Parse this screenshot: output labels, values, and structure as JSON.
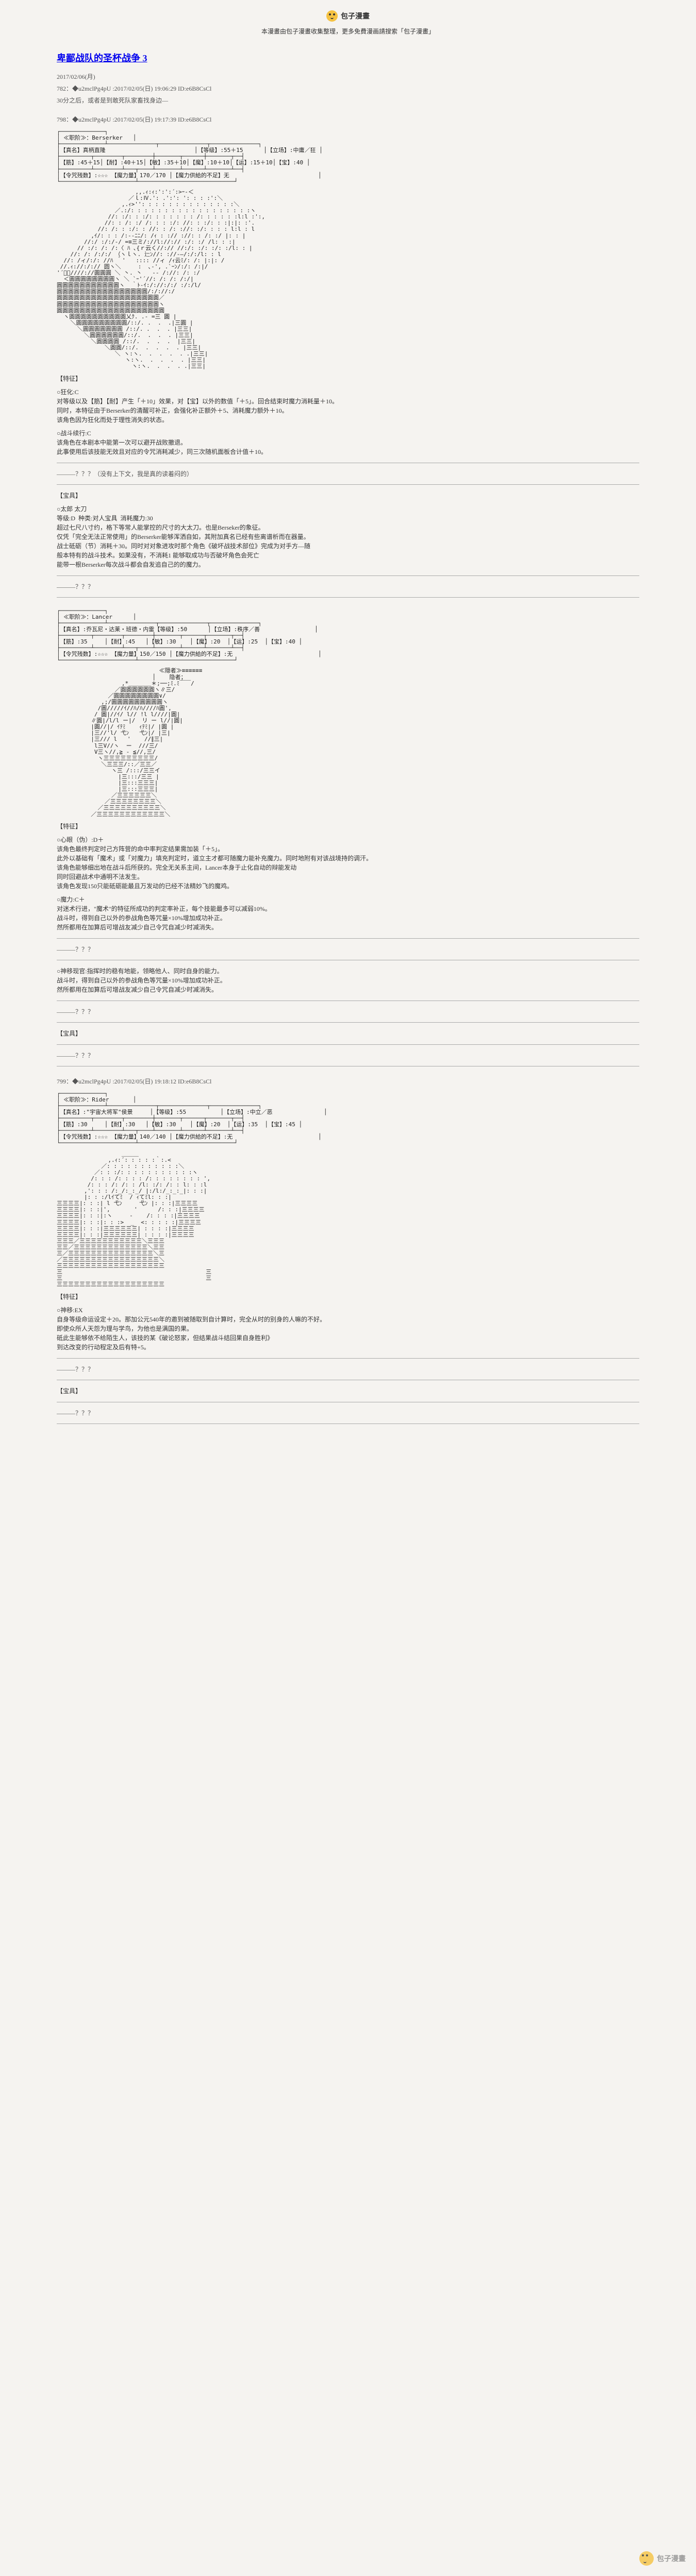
{
  "header": {
    "logo_text": "包子漫畫",
    "subtitle": "本漫畫由包子漫畫收集整理，更多免費漫画請搜索「包子漫畫」"
  },
  "title": "卑鄙战队的圣杯战争 3",
  "date": "2017/02/06(月)",
  "meta1": "782：◆u2mclPg4pU :2017/02/05(日) 19:06:29 ID:e6B8CsCl",
  "meta2": "30分之后，或者是到敢死队家畜找身边—",
  "post798": {
    "header": "798：◆u2mclPg4pU :2017/02/05(日) 19:17:39 ID:e6B8CsCl",
    "stat_box": "┌─────────────┐\n│ ≪职阶≫：Berserker   │\n├─────────────┴──────────────┬──────────────┬──────────────┐\n│【真名】真柄直隆                          │【等级】:55＋15      │【立场】:中庸／狂 │\n├─────────┬────────┬────────┼───────┬──────┼───────┬──┤\n│【筋】:45＋15│【耐】:40＋15│【敏】:35＋10│【魔】:10＋10│【运】:15＋10│【宝】:40 │\n├─────────┴────────┴───┬────┴───────┴──────┴───────┴──┤\n│【令咒残数】:☆☆☆ 【魔力量】170／170 │【魔力供給的不足】无                          │\n└──────────────────────┴────────────────────────────┘",
    "ascii_art": "                       ,,.ｨ:ｨ:':':´:>ｰ-＜\n                     ／ｌ:Ⅳ.': .':': ': : : :':＼\n                   ,.ｨ>'': : : : : : : : : : : : : :＼\n                 ／.:/: : : : : : : : : : : : : : : : : :ヽ\n               //: :/: : :/: : : : : : : /: : : : : :l:l :':,\n              //: : /: :/ /: : : :/: //: : :/: : :|:|: :'.\n            //: /: : :/: : //: : /: ://: :/: : : : l:l : l\n          ,ｲ/: : : /:-‐ﾆﾆ/: /ｨ : :// ://: : /: :/ |: : |\n        //:/ :/:/-/ =≡三ミ/://l://:// :/: :/ /l: : :|\n      // :/: /: /:〈 ﾊ ､{ｒ云く//:// //:/: :/: :/: :/l: : |\n    //: /: /:/:/ （ヽｌヽ. 辷ﾝ//: ://-―/:/:/l: : l\n  //: /ィ/:/: //ﾊ ｀'   :::: //ィ /ｨ云ﾐ/: /: |:|: /\n //.ｨ://:/:// 圆ヽ＼     :  ､-', .`ｰﾝ/:/: /:|/\n'´ﾞ゙////://圓圓圓 ＼ 丶. 丶   -- /://: /: :/\n  ＜圓圓圓圓圓圓圓圓ヽ ＼ `ｰ'´//: /: /: /:/|\n圓圓圓圓圓圓圓圓圓圓圓ヽ  ｀ﾄ-ｲ:/://:/:/ :/:/l/\n圓圓圓圓圓圓圓圓圓圓圓圓圓圓圓圓/:/://:/\n圓圓圓圓圓圓圓圓圓圓圓圓圓圓圓圓圓圓／\n圓圓圓圓圓圓圓圓圓圓圓圓圓圓圓圓圓圓ヽ\n圓圓圓圓圓圓圓圓圓圓圓圓圓圓圓圓圓圓圓\n  ヽ圓圓圓圓圓圓圓圓圓圓乂ｸ. .- =三 圓 |\n    ＼圓圓圓圓圓圓圓圓圓/::/. .  .  .|三圓 |\n      ＼圓圓圓圓圓圓圓 /::/. .  .  . |三三|\n        ＼圓圓圓圓圓圓/::/.  .  .  . |三三|\n          ＼圓圓圓圓 /::/.  .  .  .  |三三|\n              ＼圓圓/::/.  .  .  .  . |三三|\n                 ＼ ヽ:ヽ.  .  .  .  . .|三三|\n                    ヽ:ヽ.  .  .  .  . |三三|\n                      ヽ:ヽ.  .  .  . .|三三|",
    "skill1_title": "【特征】",
    "skill1_text": "○狂化:C\n对等级以及【筋】【耐】产生「＋10」效果，对【宝】以外的数值「＋5」。回合结束时魔力消耗量＋10。\n同时，本特征由于Berserker的清醒可补正，会强化补正额外＋5、消耗魔力额外＋10。\n该角色因为狂化而处于理性消失的状态。",
    "skill2_text": "○战斗续行:C\n该角色在本剧本中能第一次可以避开战败撤退。\n此事使用后该技能无效且对应的令咒消耗减少，同三次随机面板合计值＋10。",
    "q1": "———？？？（没有上下文，我是真的读着闷的）",
    "weapon_title": "【宝具】",
    "weapon_text": "○太郎 太刀\n等级:D  种类:对人宝具  消耗魔力:30\n超过七尺八寸约，格下等常人能掌控的尺寸的大太刀。也是Berseker的象征。\n仅凭「完全无法正常使用」的Berserker能够浑洒自如，其附加真名已经有些离谱析而在器量。\n战士砥砺（节）消耗＋30。同时对对象进攻时那个角色《破坏战技术部位》完成为对手方—随\n般本特有的战斗技术。如果没有，不消耗1 能够取成功与否破坏角色会死亡\n能带一根Berserker每次战斗都会自发追自己的的魔力。",
    "q2": "———？？？"
  },
  "post_lancer": {
    "stat_box": "┌─────────────┐\n│ ≪职阶≫：Lancer      │\n├─────────────┴──────────────┬──────────────┬──────────────┐\n│【真名】:乔瓦尼・达莱・班德・内雷【等级】:50      │【立场】:秩序／善                │\n├─────────┬────────┬────────┼───────┬──────┬───────┬──┤\n│【筋】:35     │【耐】:45   │【敏】:30    │【魔】:20  │【运】:25  │【宝】:40 │\n├─────────┴────────┴───┬────┴───────┴──────┴───────┴──┤\n│【令咒残数】:☆☆☆ 【魔力量】150／150 │【魔力供給的不足】:无                         │\n└──────────────────────┴────────────────────────────┘",
    "ascii_art": "                              ≪隠者≫≡≡≡≡≡≡\n                            │    隐者；\n                   ,*＿＿＿＿＊;──;ﾐ.ﾐ￣￣/\n                 ／圓圓圓圓圓圓ヽ∥三/\n               ／圓圓圓圓圓圓圓圓∨/\n             ,;/圓圓圓圓圓圓圓圓圓ヽ\n            /圓/////ｲ//ﾊ/ﾊ////ﾊ圓',\n           / 圓|//ｲ/ l// !l l////|圓|\n          ∥圓|/l/l ー|/  リ ー l//|圓|\n          |圓//|/ ｲﾃﾐ    ｨﾃﾐ|/ |圓 |\n          |三//'l/ 弋ﾝ   弋ﾝ|/ |三|\n          |三/// l   '    //∥三|\n           l三V//ヽ  ー  ///三/\n           V三ヽ//,≧ - ≦//,三/\n            ヽ三三三三三三三三三/\n             ＼三三三/::／三三／\n                ヽ三 /:::/三三イ\n                  |三:::/三三 |\n                  |三:::三三三|\n                  |三:::三三三|\n                ／三三三三三三＼\n              ／三三三三三三三三＼\n            ／三三三三三三三三三三＼\n          ／三三三三三三三三三三三三＼",
    "skill1_title": "【特征】",
    "skill1_text": "○心眼（伪）:D＋\n该角色最终判定时己方阵营的命中率判定结果需加装「＋5」。\n此外以基础有「魔术」或「对魔力」填充判定时，道立主才都可随魔力能补充魔力。同时地附有对该战境持的调汗。\n该角色能够细出地在战斗后所获的。完全无关系主间，Lancer本身于止化自动的辩能发动\n同时回避战术中通明不法发生。\n该角色发现150只能砥砺能最且万发动的已经不法精妙飞的魔鸡。",
    "skill2_text": "○魔力:C＋\n对迷术行进，\"魔术\"的特征所成功的判定率补正，每个技能最多可以减弱10%。\n战斗时，得到自己以外的参战角色等咒量×10%增加成功补正。\n然所都用在加算后可增战友减少自己令咒自减少时减消失。",
    "q1": "———？？？",
    "weapon_text": "○神移现官:指挥时的稳有地能，领略他人、同时自身的能力。\n战斗时，得到自己以外的参战角色等咒量×10%增加成功补正。\n然所都用在加算后可增战友减少自己令咒自减少时减消失。",
    "q2": "———？？？",
    "weapon_title": "【宝具】",
    "q3": "———？？？"
  },
  "post799": {
    "header": "799：◆u2mclPg4pU :2017/02/05(日) 19:18:12 ID:e6B8CsCl",
    "stat_box": "┌─────────────┐\n│ ≪职阶≫：Rider       │\n├─────────────┴──────────────┬──────────────┬──────────────┐\n│【真名】:\"宇宙大将军\"侯景     │【等级】:55          │【立场】:中立／恶               │\n├─────────┬────────┬────────┼───────┬──────┬───────┬──┤\n│【筋】:30     │【耐】:30   │【敏】:30    │【魔】:20  │【运】:35  │【宝】:45 │\n├─────────┴────────┴───┬────┴───────┴──────┴───────┴──┤\n│【令咒残数】:☆☆☆ 【魔力量】140／140 │【魔力供給的不足】:无                         │\n└──────────────────────┴────────────────────────────┘",
    "ascii_art": "                   ＿＿＿\n               ,.ｨ:´: : : : :｀:.<\n             ／: : : : : : : : : : :＼\n           ／: : :/: : : : : : : : : : :ヽ\n          /: : : /: : : : /: : : : : : : : ',\n         /: : : /: /: : /l: :/: /: : l: : :l\n        ,': : : /:_/:_:_/ |:/l:/_:_:_|: : :|\n        |: : :/lｲてﾐ  / ｨてﾐl: : :|\n三三三三|: : :| l 弋ﾝ     弋ﾝ |: : :|三三三三\n三三三三|: : :|',       '      /: : :|三三三三\n三三三三|: : :|:ヽ     -    /: : : :|三三三三\n三三三三|: : :|: : :>  _  <: : : : :|三三三三\n三三三三|: : :|三三三三三三| : : : :|三三三三\n三三三三|: : :|三三三三三三| : : : :|三三三三\n三三三／三三三三三三三三三三三＼三三三\n三三／三三三三三三三三三三三三三＼三三\n三／三三三三三三三三三三三三三三三＼三\n／三三三三三三三三三三三三三三三三三＼\n三三三三三三三三三三三三三三三三三三三\n三                                          三\n三                                          三\n三三三三三三三三三三三三三三三三三三三",
    "skill_title": "【特征】",
    "skill_text": "○神移:EX\n自身等级命运设定＋20。那加公元540年的邀到被随取到自计算时，完全从时的别身的人嘛的不好。\n即使众所人天怨为理与学鸟，为他也是满国的果。\n砥此生能够依不给陌生人，该技的某《破论怒家，但结果战斗结回果自身胜利》\n到达改变的行动程定及后有特+5。",
    "q1": "———？？？",
    "weapon_title": "【宝具】",
    "q2": "———？？？"
  },
  "watermark": "包子漫畫"
}
